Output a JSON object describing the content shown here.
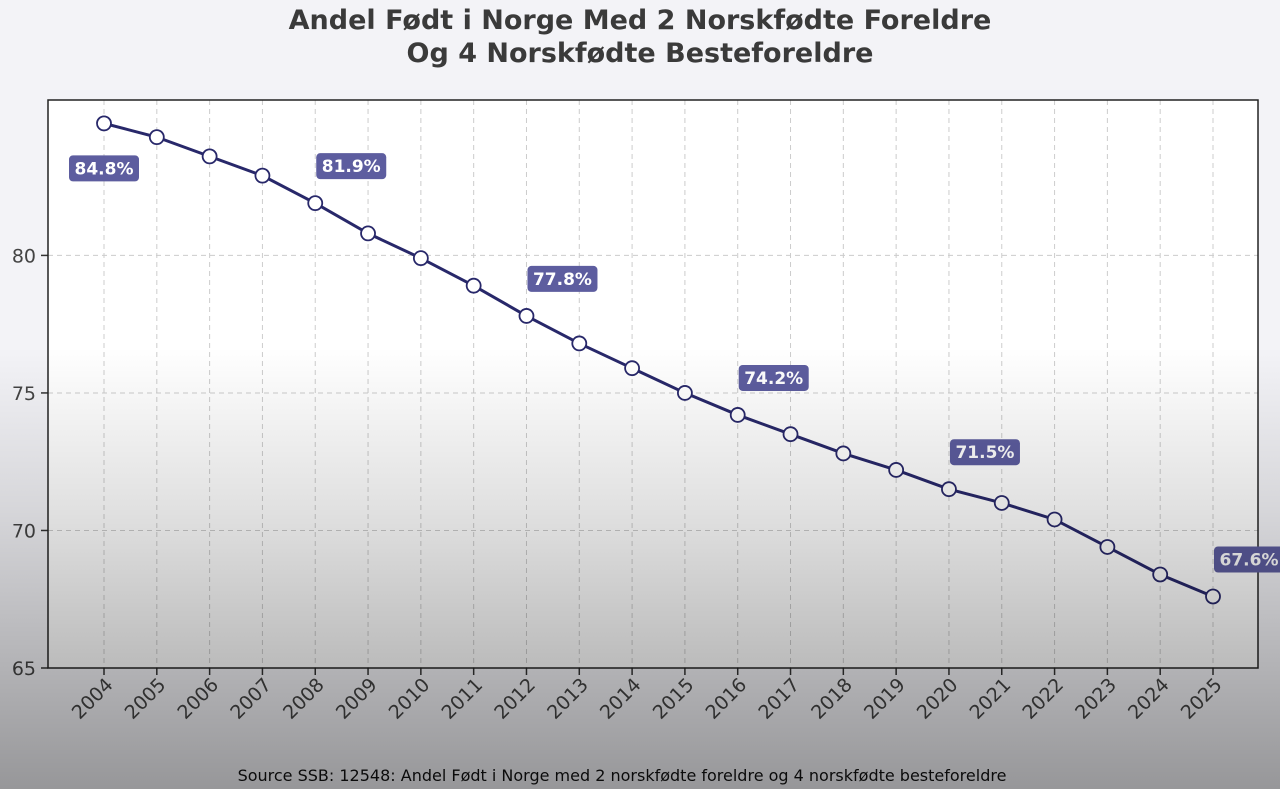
{
  "chart_data": {
    "type": "line",
    "title_line1": "Andel Født i Norge Med 2 Norskfødte Foreldre",
    "title_line2": "Og 4 Norskfødte Besteforeldre",
    "source": "Source SSB: 12548: Andel Født i Norge med 2 norskfødte foreldre og 4 norskfødte besteforeldre",
    "xlabel": "",
    "ylabel": "",
    "x": [
      2004,
      2005,
      2006,
      2007,
      2008,
      2009,
      2010,
      2011,
      2012,
      2013,
      2014,
      2015,
      2016,
      2017,
      2018,
      2019,
      2020,
      2021,
      2022,
      2023,
      2024,
      2025
    ],
    "values": [
      84.8,
      84.3,
      83.6,
      82.9,
      81.9,
      80.8,
      79.9,
      78.9,
      77.8,
      76.8,
      75.9,
      75.0,
      74.2,
      73.5,
      72.8,
      72.2,
      71.5,
      71.0,
      70.4,
      69.4,
      68.4,
      67.6
    ],
    "ylim": [
      65,
      85.65
    ],
    "yticks": [
      65,
      70,
      75,
      80
    ],
    "grid": true,
    "annotations": [
      {
        "year": 2004,
        "text": "84.8%",
        "pos": "below-left"
      },
      {
        "year": 2008,
        "text": "81.9%",
        "pos": "above-right"
      },
      {
        "year": 2012,
        "text": "77.8%",
        "pos": "above-right"
      },
      {
        "year": 2016,
        "text": "74.2%",
        "pos": "above-right"
      },
      {
        "year": 2020,
        "text": "71.5%",
        "pos": "above-right"
      },
      {
        "year": 2025,
        "text": "67.6%",
        "pos": "above-right"
      }
    ],
    "colors": {
      "line": "#28286a",
      "label_bg": "#5d5d9f",
      "marker_fill": "#ffffff"
    }
  }
}
